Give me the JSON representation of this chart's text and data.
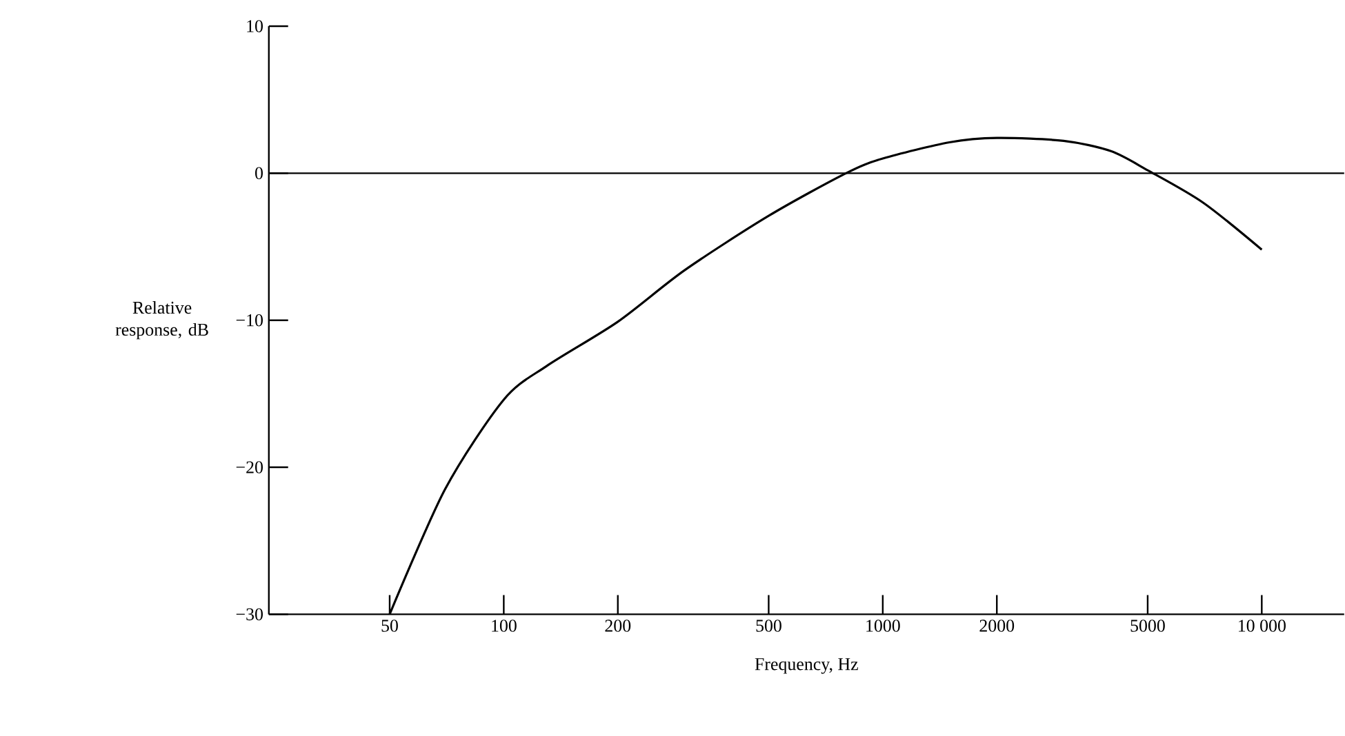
{
  "chart_data": {
    "type": "line",
    "xlabel": "Frequency, Hz",
    "ylabel": "Relative response, dB",
    "log": "x",
    "xlim": [
      24,
      16500
    ],
    "ylim": [
      -30,
      10
    ],
    "xticks": [
      50,
      100,
      200,
      500,
      1000,
      2000,
      5000,
      {
        "value": 10000,
        "label": "10 000"
      }
    ],
    "yticks": [
      10,
      0,
      {
        "value": -10,
        "label": "−10"
      },
      {
        "value": -20,
        "label": "−20"
      },
      {
        "value": -30,
        "label": "−30"
      }
    ],
    "x": [
      50,
      70,
      100,
      130,
      200,
      300,
      500,
      800,
      1000,
      1500,
      2000,
      3000,
      4000,
      5000,
      7000,
      10000
    ],
    "series": [
      {
        "color": "#000000",
        "values": [
          -30,
          -21.5,
          -15.4,
          -13.1,
          -10.1,
          -6.6,
          -2.9,
          0,
          1.0,
          2.1,
          2.4,
          2.2,
          1.5,
          0.2,
          -2,
          -5.2
        ]
      }
    ],
    "ref_lines": [
      {
        "axis": "y",
        "value": 0,
        "color": "#000000"
      }
    ],
    "marker": "none",
    "line_style": "solid"
  }
}
